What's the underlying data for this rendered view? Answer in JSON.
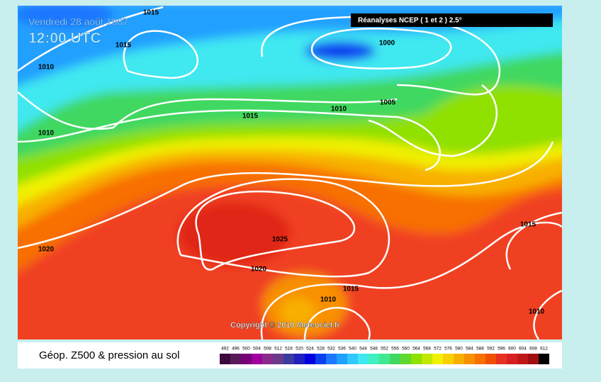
{
  "header": {
    "date": "Vendredi 28 août 1987",
    "time": "12:00 UTC",
    "source": "Réanalyses NCEP ( 1 et 2 ) 2.5°"
  },
  "isobar_labels": [
    "1015",
    "1015",
    "1010",
    "1010",
    "1000",
    "1015",
    "1010",
    "1005",
    "1020",
    "1025",
    "1020",
    "1015",
    "1010",
    "1015",
    "1010"
  ],
  "copyright": "Copyright © 2010 Meteociel.fr",
  "footer": {
    "title": "Géop. Z500 & pression au sol"
  },
  "scale": {
    "labels": [
      "492",
      "496",
      "500",
      "504",
      "508",
      "512",
      "516",
      "520",
      "524",
      "528",
      "532",
      "536",
      "540",
      "544",
      "548",
      "552",
      "556",
      "560",
      "564",
      "568",
      "572",
      "576",
      "580",
      "584",
      "588",
      "592",
      "596",
      "600",
      "604",
      "608",
      "612"
    ],
    "colors": [
      "#3c0a3c",
      "#5a1a5a",
      "#780078",
      "#a000a0",
      "#8c2a8c",
      "#6a3a8a",
      "#3a3aa0",
      "#2020c0",
      "#0000e0",
      "#0a40f0",
      "#1e78ff",
      "#20a0ff",
      "#30c8ff",
      "#40e8f0",
      "#40f0c0",
      "#40e890",
      "#40d860",
      "#60d830",
      "#90e000",
      "#c0e800",
      "#f0f000",
      "#f8d000",
      "#f8b000",
      "#f89000",
      "#f87000",
      "#f05000",
      "#e83020",
      "#d82020",
      "#c01818",
      "#a01010",
      "#000000"
    ]
  }
}
